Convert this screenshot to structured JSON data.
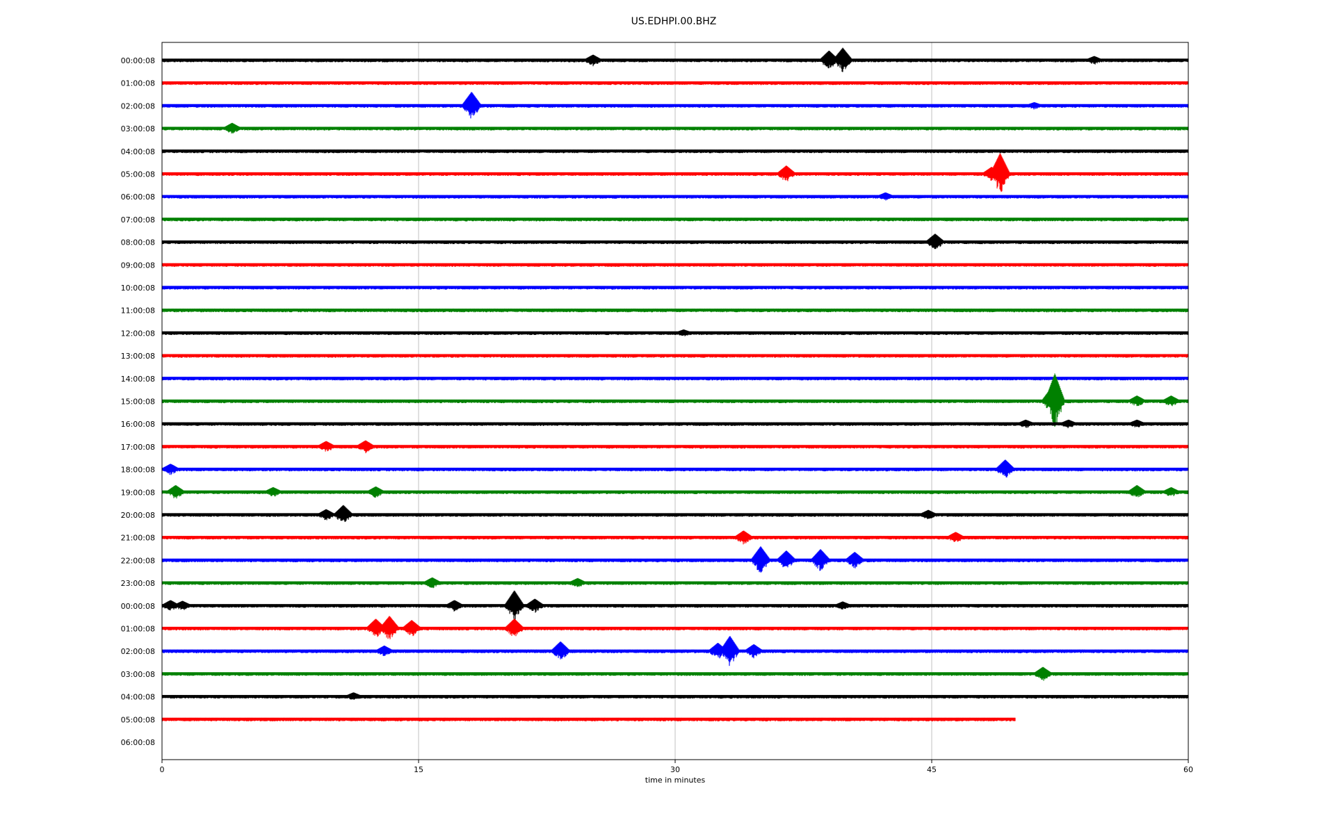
{
  "chart_data": {
    "type": "line",
    "title": "US.EDHPI.00.BHZ",
    "xlabel": "time in minutes",
    "ylabel": "",
    "xlim": [
      0,
      60
    ],
    "xticks": [
      0,
      15,
      30,
      45,
      60
    ],
    "grid": "vertical",
    "line_colors": [
      "#000000",
      "#ff0000",
      "#0000ff",
      "#008000"
    ],
    "rows": [
      {
        "label": "00:00:08",
        "end": 60,
        "events": [
          {
            "t": 25.2,
            "a": 8
          },
          {
            "t": 39.0,
            "a": 14
          },
          {
            "t": 39.8,
            "a": 18
          },
          {
            "t": 54.5,
            "a": 6
          }
        ]
      },
      {
        "label": "01:00:08",
        "end": 60,
        "events": []
      },
      {
        "label": "02:00:08",
        "end": 60,
        "events": [
          {
            "t": 18.1,
            "a": 20
          },
          {
            "t": 51.0,
            "a": 5
          }
        ]
      },
      {
        "label": "03:00:08",
        "end": 60,
        "events": [
          {
            "t": 4.1,
            "a": 8
          }
        ]
      },
      {
        "label": "04:00:08",
        "end": 60,
        "events": []
      },
      {
        "label": "05:00:08",
        "end": 60,
        "events": [
          {
            "t": 36.5,
            "a": 12
          },
          {
            "t": 48.5,
            "a": 10
          },
          {
            "t": 49.0,
            "a": 30
          }
        ]
      },
      {
        "label": "06:00:08",
        "end": 60,
        "events": [
          {
            "t": 42.3,
            "a": 6
          }
        ]
      },
      {
        "label": "07:00:08",
        "end": 60,
        "events": []
      },
      {
        "label": "08:00:08",
        "end": 60,
        "events": [
          {
            "t": 45.2,
            "a": 12
          }
        ]
      },
      {
        "label": "09:00:08",
        "end": 60,
        "events": []
      },
      {
        "label": "10:00:08",
        "end": 60,
        "events": []
      },
      {
        "label": "11:00:08",
        "end": 60,
        "events": []
      },
      {
        "label": "12:00:08",
        "end": 60,
        "events": [
          {
            "t": 30.5,
            "a": 5
          }
        ]
      },
      {
        "label": "13:00:08",
        "end": 60,
        "events": []
      },
      {
        "label": "14:00:08",
        "end": 60,
        "events": []
      },
      {
        "label": "15:00:08",
        "end": 60,
        "events": [
          {
            "t": 52.0,
            "a": 20
          },
          {
            "t": 52.2,
            "a": 40
          },
          {
            "t": 57.0,
            "a": 8
          },
          {
            "t": 59.0,
            "a": 8
          }
        ]
      },
      {
        "label": "16:00:08",
        "end": 60,
        "events": [
          {
            "t": 50.5,
            "a": 6
          },
          {
            "t": 53.0,
            "a": 6
          },
          {
            "t": 57.0,
            "a": 6
          }
        ]
      },
      {
        "label": "17:00:08",
        "end": 60,
        "events": [
          {
            "t": 9.6,
            "a": 8
          },
          {
            "t": 11.9,
            "a": 9
          }
        ]
      },
      {
        "label": "18:00:08",
        "end": 60,
        "events": [
          {
            "t": 0.5,
            "a": 8
          },
          {
            "t": 49.3,
            "a": 14
          }
        ]
      },
      {
        "label": "19:00:08",
        "end": 60,
        "events": [
          {
            "t": 0.8,
            "a": 10
          },
          {
            "t": 6.5,
            "a": 7
          },
          {
            "t": 12.5,
            "a": 8
          },
          {
            "t": 57.0,
            "a": 10
          },
          {
            "t": 59.0,
            "a": 7
          }
        ]
      },
      {
        "label": "20:00:08",
        "end": 60,
        "events": [
          {
            "t": 9.6,
            "a": 8
          },
          {
            "t": 10.6,
            "a": 14
          },
          {
            "t": 44.8,
            "a": 7
          }
        ]
      },
      {
        "label": "21:00:08",
        "end": 60,
        "events": [
          {
            "t": 34.0,
            "a": 10
          },
          {
            "t": 46.4,
            "a": 8
          }
        ]
      },
      {
        "label": "22:00:08",
        "end": 60,
        "events": [
          {
            "t": 35.0,
            "a": 20
          },
          {
            "t": 36.5,
            "a": 14
          },
          {
            "t": 38.5,
            "a": 16
          },
          {
            "t": 40.5,
            "a": 12
          }
        ]
      },
      {
        "label": "23:00:08",
        "end": 60,
        "events": [
          {
            "t": 15.8,
            "a": 8
          },
          {
            "t": 24.3,
            "a": 7
          }
        ]
      },
      {
        "label": "00:00:08",
        "end": 60,
        "events": [
          {
            "t": 0.5,
            "a": 8
          },
          {
            "t": 1.2,
            "a": 7
          },
          {
            "t": 17.1,
            "a": 8
          },
          {
            "t": 20.6,
            "a": 22
          },
          {
            "t": 21.8,
            "a": 10
          },
          {
            "t": 39.8,
            "a": 6
          }
        ]
      },
      {
        "label": "01:00:08",
        "end": 60,
        "events": [
          {
            "t": 12.5,
            "a": 14
          },
          {
            "t": 13.3,
            "a": 18
          },
          {
            "t": 14.6,
            "a": 12
          },
          {
            "t": 20.6,
            "a": 14
          }
        ]
      },
      {
        "label": "02:00:08",
        "end": 60,
        "events": [
          {
            "t": 13.0,
            "a": 8
          },
          {
            "t": 23.3,
            "a": 14
          },
          {
            "t": 32.5,
            "a": 12
          },
          {
            "t": 33.2,
            "a": 22
          },
          {
            "t": 34.6,
            "a": 10
          }
        ]
      },
      {
        "label": "03:00:08",
        "end": 60,
        "events": [
          {
            "t": 51.5,
            "a": 10
          }
        ]
      },
      {
        "label": "04:00:08",
        "end": 60,
        "events": [
          {
            "t": 11.2,
            "a": 6
          }
        ]
      },
      {
        "label": "05:00:08",
        "end": 49.9,
        "events": []
      },
      {
        "label": "06:00:08",
        "end": 0,
        "events": []
      }
    ]
  }
}
